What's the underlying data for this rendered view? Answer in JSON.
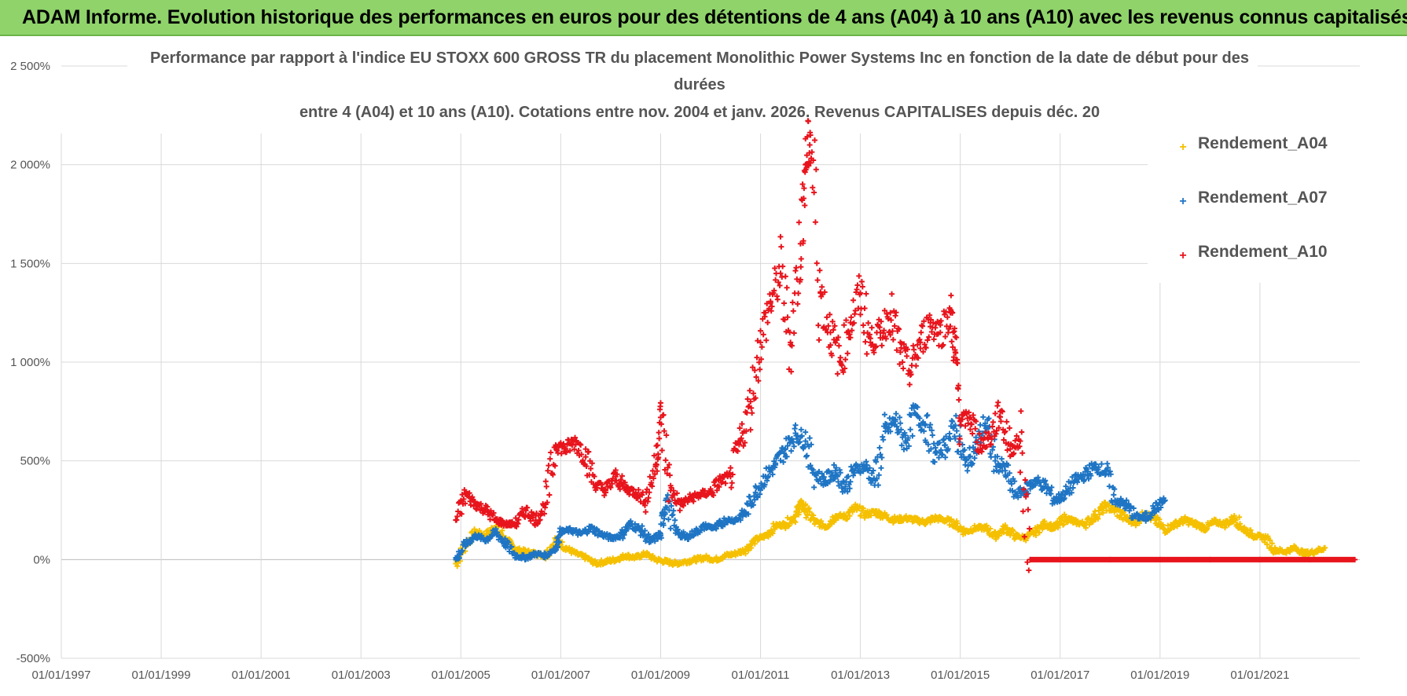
{
  "banner": {
    "title": "ADAM Informe. Evolution historique des performances en euros pour des détentions de 4 ans (A04) à 10 ans (A10) avec les revenus connus capitalisés"
  },
  "chart_data": {
    "type": "scatter",
    "title_lines": [
      "Performance par rapport à l'indice EU STOXX 600 GROSS TR  du placement Monolithic Power Systems Inc en fonction de la date de début pour des",
      "durées",
      "entre 4 (A04) et 10 ans (A10).  Cotations entre nov. 2004 et janv. 2026. Revenus CAPITALISES depuis déc. 20"
    ],
    "ylim": [
      -500,
      2500
    ],
    "y_ticks": [
      -500,
      0,
      500,
      1000,
      1500,
      2000,
      2500
    ],
    "y_tick_labels": [
      "-500%",
      "0%",
      "500%",
      "1 000%",
      "1 500%",
      "2 000%",
      "2 500%"
    ],
    "xlim": [
      1997.0,
      2023.0
    ],
    "x_ticks": [
      1997,
      1999,
      2001,
      2003,
      2005,
      2007,
      2009,
      2011,
      2013,
      2015,
      2017,
      2019,
      2021
    ],
    "x_tick_labels": [
      "01/01/1997",
      "01/01/1999",
      "01/01/2001",
      "01/01/2003",
      "01/01/2005",
      "01/01/2007",
      "01/01/2009",
      "01/01/2011",
      "01/01/2013",
      "01/01/2015",
      "01/01/2017",
      "01/01/2019",
      "01/01/2021"
    ],
    "legend_position": "top-right",
    "series": [
      {
        "name": "Rendement_A04",
        "color": "#f5c000",
        "points": [
          [
            2004.9,
            -20
          ],
          [
            2005.1,
            80
          ],
          [
            2005.3,
            140
          ],
          [
            2005.5,
            120
          ],
          [
            2005.7,
            170
          ],
          [
            2005.9,
            100
          ],
          [
            2006.1,
            50
          ],
          [
            2006.3,
            40
          ],
          [
            2006.5,
            30
          ],
          [
            2006.7,
            20
          ],
          [
            2006.9,
            100
          ],
          [
            2007.1,
            60
          ],
          [
            2007.3,
            30
          ],
          [
            2007.5,
            10
          ],
          [
            2007.7,
            -20
          ],
          [
            2007.9,
            -10
          ],
          [
            2008.1,
            0
          ],
          [
            2008.3,
            20
          ],
          [
            2008.5,
            10
          ],
          [
            2008.7,
            30
          ],
          [
            2008.9,
            0
          ],
          [
            2009.1,
            -10
          ],
          [
            2009.3,
            -20
          ],
          [
            2009.5,
            -10
          ],
          [
            2009.7,
            0
          ],
          [
            2009.9,
            10
          ],
          [
            2010.1,
            0
          ],
          [
            2010.3,
            20
          ],
          [
            2010.5,
            30
          ],
          [
            2010.7,
            50
          ],
          [
            2010.9,
            100
          ],
          [
            2011.1,
            120
          ],
          [
            2011.3,
            170
          ],
          [
            2011.5,
            180
          ],
          [
            2011.7,
            220
          ],
          [
            2011.8,
            280
          ],
          [
            2011.9,
            250
          ],
          [
            2012.1,
            190
          ],
          [
            2012.3,
            170
          ],
          [
            2012.5,
            220
          ],
          [
            2012.7,
            220
          ],
          [
            2012.9,
            260
          ],
          [
            2013.1,
            230
          ],
          [
            2013.3,
            240
          ],
          [
            2013.5,
            220
          ],
          [
            2013.7,
            200
          ],
          [
            2013.9,
            210
          ],
          [
            2014.1,
            200
          ],
          [
            2014.3,
            190
          ],
          [
            2014.5,
            210
          ],
          [
            2014.7,
            200
          ],
          [
            2014.9,
            180
          ],
          [
            2015.1,
            140
          ],
          [
            2015.3,
            160
          ],
          [
            2015.5,
            160
          ],
          [
            2015.7,
            120
          ],
          [
            2015.9,
            160
          ],
          [
            2016.1,
            120
          ],
          [
            2016.3,
            110
          ],
          [
            2016.5,
            140
          ],
          [
            2016.7,
            180
          ],
          [
            2016.9,
            160
          ],
          [
            2017.1,
            210
          ],
          [
            2017.3,
            190
          ],
          [
            2017.5,
            180
          ],
          [
            2017.7,
            220
          ],
          [
            2017.9,
            270
          ],
          [
            2018.1,
            250
          ],
          [
            2018.3,
            210
          ],
          [
            2018.5,
            190
          ],
          [
            2018.7,
            230
          ],
          [
            2018.9,
            200
          ],
          [
            2019.1,
            150
          ],
          [
            2019.3,
            180
          ],
          [
            2019.5,
            200
          ],
          [
            2019.7,
            180
          ],
          [
            2019.9,
            160
          ],
          [
            2020.1,
            190
          ],
          [
            2020.3,
            180
          ],
          [
            2020.5,
            210
          ],
          [
            2020.7,
            150
          ],
          [
            2020.9,
            120
          ],
          [
            2021.1,
            110
          ],
          [
            2021.3,
            50
          ],
          [
            2021.5,
            40
          ],
          [
            2021.7,
            60
          ],
          [
            2021.9,
            30
          ],
          [
            2022.1,
            40
          ],
          [
            2022.3,
            60
          ]
        ]
      },
      {
        "name": "Rendement_A07",
        "color": "#1f75c4",
        "points": [
          [
            2004.9,
            0
          ],
          [
            2005.1,
            80
          ],
          [
            2005.3,
            120
          ],
          [
            2005.5,
            100
          ],
          [
            2005.7,
            140
          ],
          [
            2005.9,
            80
          ],
          [
            2006.1,
            20
          ],
          [
            2006.3,
            10
          ],
          [
            2006.5,
            30
          ],
          [
            2006.7,
            20
          ],
          [
            2006.9,
            60
          ],
          [
            2007.0,
            140
          ],
          [
            2007.2,
            150
          ],
          [
            2007.4,
            130
          ],
          [
            2007.6,
            160
          ],
          [
            2007.8,
            130
          ],
          [
            2008.0,
            110
          ],
          [
            2008.2,
            120
          ],
          [
            2008.4,
            180
          ],
          [
            2008.6,
            150
          ],
          [
            2008.8,
            90
          ],
          [
            2009.0,
            130
          ],
          [
            2009.1,
            300
          ],
          [
            2009.3,
            150
          ],
          [
            2009.5,
            110
          ],
          [
            2009.7,
            140
          ],
          [
            2009.9,
            170
          ],
          [
            2010.1,
            160
          ],
          [
            2010.3,
            200
          ],
          [
            2010.5,
            200
          ],
          [
            2010.7,
            240
          ],
          [
            2010.9,
            340
          ],
          [
            2011.1,
            420
          ],
          [
            2011.3,
            480
          ],
          [
            2011.5,
            560
          ],
          [
            2011.7,
            640
          ],
          [
            2011.9,
            600
          ],
          [
            2012.1,
            430
          ],
          [
            2012.3,
            400
          ],
          [
            2012.5,
            450
          ],
          [
            2012.7,
            370
          ],
          [
            2012.9,
            460
          ],
          [
            2013.1,
            470
          ],
          [
            2013.3,
            400
          ],
          [
            2013.5,
            650
          ],
          [
            2013.7,
            700
          ],
          [
            2013.9,
            600
          ],
          [
            2014.1,
            740
          ],
          [
            2014.3,
            680
          ],
          [
            2014.5,
            540
          ],
          [
            2014.7,
            580
          ],
          [
            2014.9,
            680
          ],
          [
            2015.1,
            480
          ],
          [
            2015.3,
            560
          ],
          [
            2015.5,
            690
          ],
          [
            2015.7,
            500
          ],
          [
            2015.9,
            450
          ],
          [
            2016.1,
            330
          ],
          [
            2016.3,
            350
          ],
          [
            2016.5,
            400
          ],
          [
            2016.7,
            370
          ],
          [
            2016.9,
            300
          ],
          [
            2017.1,
            330
          ],
          [
            2017.3,
            400
          ],
          [
            2017.5,
            430
          ],
          [
            2017.7,
            470
          ],
          [
            2017.9,
            450
          ],
          [
            2018.1,
            300
          ],
          [
            2018.3,
            280
          ],
          [
            2018.5,
            220
          ],
          [
            2018.7,
            210
          ],
          [
            2018.9,
            260
          ],
          [
            2019.1,
            300
          ]
        ]
      },
      {
        "name": "Rendement_A10",
        "color": "#e8141c",
        "points": [
          [
            2004.9,
            200
          ],
          [
            2005.1,
            330
          ],
          [
            2005.3,
            280
          ],
          [
            2005.5,
            250
          ],
          [
            2005.7,
            200
          ],
          [
            2005.9,
            180
          ],
          [
            2006.1,
            180
          ],
          [
            2006.3,
            250
          ],
          [
            2006.5,
            200
          ],
          [
            2006.7,
            280
          ],
          [
            2006.9,
            580
          ],
          [
            2007.1,
            560
          ],
          [
            2007.3,
            600
          ],
          [
            2007.5,
            520
          ],
          [
            2007.7,
            380
          ],
          [
            2007.9,
            350
          ],
          [
            2008.1,
            420
          ],
          [
            2008.3,
            360
          ],
          [
            2008.5,
            340
          ],
          [
            2008.7,
            300
          ],
          [
            2008.9,
            480
          ],
          [
            2009.0,
            720
          ],
          [
            2009.2,
            350
          ],
          [
            2009.4,
            280
          ],
          [
            2009.6,
            310
          ],
          [
            2009.8,
            330
          ],
          [
            2010.0,
            340
          ],
          [
            2010.2,
            400
          ],
          [
            2010.4,
            420
          ],
          [
            2010.6,
            600
          ],
          [
            2010.8,
            800
          ],
          [
            2011.0,
            1100
          ],
          [
            2011.2,
            1300
          ],
          [
            2011.4,
            1450
          ],
          [
            2011.6,
            1100
          ],
          [
            2011.8,
            1600
          ],
          [
            2011.9,
            2000
          ],
          [
            2012.0,
            2150
          ],
          [
            2012.2,
            1350
          ],
          [
            2012.4,
            1150
          ],
          [
            2012.6,
            1000
          ],
          [
            2012.8,
            1200
          ],
          [
            2013.0,
            1350
          ],
          [
            2013.2,
            1100
          ],
          [
            2013.4,
            1150
          ],
          [
            2013.6,
            1250
          ],
          [
            2013.8,
            1050
          ],
          [
            2014.0,
            950
          ],
          [
            2014.2,
            1100
          ],
          [
            2014.4,
            1200
          ],
          [
            2014.6,
            1150
          ],
          [
            2014.8,
            1250
          ],
          [
            2014.9,
            1050
          ],
          [
            2015.0,
            700
          ],
          [
            2015.2,
            720
          ],
          [
            2015.4,
            580
          ],
          [
            2015.6,
            620
          ],
          [
            2015.8,
            750
          ],
          [
            2016.0,
            560
          ],
          [
            2016.2,
            600
          ],
          [
            2016.4,
            0
          ],
          [
            2017.0,
            0
          ],
          [
            2018.0,
            0
          ],
          [
            2019.0,
            0
          ],
          [
            2020.0,
            0
          ],
          [
            2021.0,
            0
          ],
          [
            2022.0,
            0
          ],
          [
            2022.9,
            0
          ]
        ]
      }
    ]
  }
}
